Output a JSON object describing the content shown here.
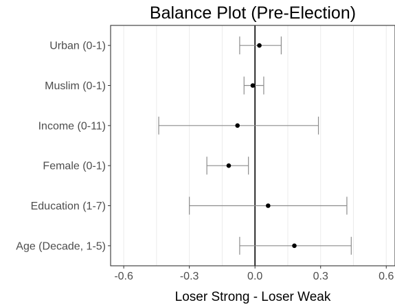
{
  "chart_data": {
    "type": "scatter",
    "title": "Balance Plot (Pre-Election)",
    "xlabel": "Loser Strong - Loser Weak",
    "ylabel": "",
    "xlim": [
      -0.66,
      0.64
    ],
    "xticks": [
      -0.6,
      -0.3,
      0.0,
      0.3,
      0.6
    ],
    "xtick_labels": [
      "-0.6",
      "-0.3",
      "0.0",
      "0.3",
      "0.6"
    ],
    "reference_line": 0.0,
    "grid": "vertical",
    "categories": [
      "Urban (0-1)",
      "Muslim (0-1)",
      "Income (0-11)",
      "Female (0-1)",
      "Education (1-7)",
      "Age (Decade, 1-5)"
    ],
    "estimate": [
      0.02,
      -0.01,
      -0.08,
      -0.12,
      0.06,
      0.18
    ],
    "ci_low": [
      -0.07,
      -0.05,
      -0.44,
      -0.22,
      -0.3,
      -0.07
    ],
    "ci_high": [
      0.12,
      0.04,
      0.29,
      -0.03,
      0.42,
      0.44
    ]
  }
}
